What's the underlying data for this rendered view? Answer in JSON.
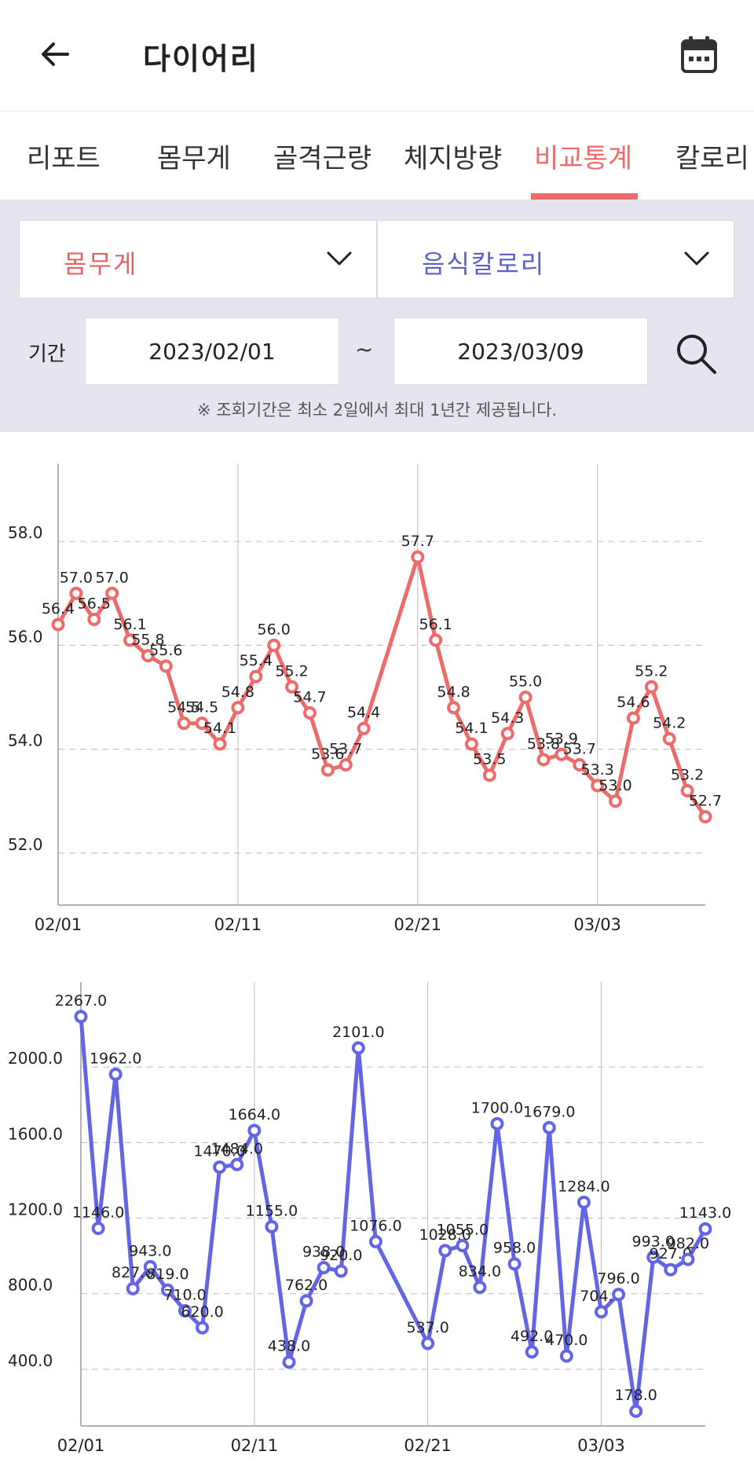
{
  "header": {
    "title": "다이어리",
    "back_icon": "arrow-left-icon",
    "calendar_icon": "calendar-icon"
  },
  "tabs": [
    {
      "label": "리포트",
      "active": false
    },
    {
      "label": "몸무게",
      "active": false
    },
    {
      "label": "골격근량",
      "active": false
    },
    {
      "label": "체지방량",
      "active": false
    },
    {
      "label": "비교통계",
      "active": true
    },
    {
      "label": "칼로리",
      "active": false
    }
  ],
  "filters": {
    "left_select": {
      "value": "몸무게",
      "color": "#e06464"
    },
    "right_select": {
      "value": "음식칼로리",
      "color": "#5a5fc8"
    },
    "period_label": "기간",
    "start_date": "2023/02/01",
    "separator": "~",
    "end_date": "2023/03/09",
    "search_icon": "search-icon",
    "notice": "※ 조회기간은 최소 2일에서 최대 1년간 제공됩니다."
  },
  "colors": {
    "accent": "#ee6b6b",
    "weight_line": "#ee6b6b",
    "calorie_line": "#6464e6"
  },
  "chart_data": [
    {
      "type": "line",
      "name": "weight",
      "x_ticks": [
        "02/01",
        "02/11",
        "02/21",
        "03/03"
      ],
      "ylim": [
        51.0,
        59.5
      ],
      "y_ticks": [
        "52.0",
        "54.0",
        "56.0",
        "58.0"
      ],
      "grid": true,
      "points": [
        {
          "x": 0,
          "y": 56.4,
          "label": "56.4"
        },
        {
          "x": 1,
          "y": 57.0,
          "label": "57.0"
        },
        {
          "x": 2,
          "y": 56.5,
          "label": "56.5"
        },
        {
          "x": 3,
          "y": 57.0,
          "label": "57.0"
        },
        {
          "x": 4,
          "y": 56.1,
          "label": "56.1"
        },
        {
          "x": 5,
          "y": 55.8,
          "label": "55.8"
        },
        {
          "x": 6,
          "y": 55.6,
          "label": "55.6"
        },
        {
          "x": 7,
          "y": 54.5,
          "label": "54.5"
        },
        {
          "x": 8,
          "y": 54.5,
          "label": "54.5"
        },
        {
          "x": 9,
          "y": 54.1,
          "label": "54.1"
        },
        {
          "x": 10,
          "y": 54.8,
          "label": "54.8"
        },
        {
          "x": 11,
          "y": 55.4,
          "label": "55.4"
        },
        {
          "x": 12,
          "y": 56.0,
          "label": "56.0"
        },
        {
          "x": 13,
          "y": 55.2,
          "label": "55.2"
        },
        {
          "x": 14,
          "y": 54.7,
          "label": "54.7"
        },
        {
          "x": 15,
          "y": 53.6,
          "label": "53.6"
        },
        {
          "x": 16,
          "y": 53.7,
          "label": "53.7"
        },
        {
          "x": 17,
          "y": 54.4,
          "label": "54.4"
        },
        {
          "x": 20,
          "y": 57.7,
          "label": "57.7"
        },
        {
          "x": 21,
          "y": 56.1,
          "label": "56.1"
        },
        {
          "x": 22,
          "y": 54.8,
          "label": "54.8"
        },
        {
          "x": 23,
          "y": 54.1,
          "label": "54.1"
        },
        {
          "x": 24,
          "y": 53.5,
          "label": "53.5"
        },
        {
          "x": 25,
          "y": 54.3,
          "label": "54.3"
        },
        {
          "x": 26,
          "y": 55.0,
          "label": "55.0"
        },
        {
          "x": 27,
          "y": 53.8,
          "label": "53.8"
        },
        {
          "x": 28,
          "y": 53.9,
          "label": "53.9"
        },
        {
          "x": 29,
          "y": 53.7,
          "label": "53.7"
        },
        {
          "x": 30,
          "y": 53.3,
          "label": "53.3"
        },
        {
          "x": 31,
          "y": 53.0,
          "label": "53.0"
        },
        {
          "x": 32,
          "y": 54.6,
          "label": "54.6"
        },
        {
          "x": 33,
          "y": 55.2,
          "label": "55.2"
        },
        {
          "x": 34,
          "y": 54.2,
          "label": "54.2"
        },
        {
          "x": 35,
          "y": 53.2,
          "label": "53.2"
        },
        {
          "x": 36,
          "y": 52.7,
          "label": "52.7"
        }
      ]
    },
    {
      "type": "line",
      "name": "calories",
      "x_ticks": [
        "02/01",
        "02/11",
        "02/21",
        "03/03"
      ],
      "ylim": [
        100,
        2450
      ],
      "y_ticks": [
        "400.0",
        "800.0",
        "1200.0",
        "1600.0",
        "2000.0"
      ],
      "grid": true,
      "points": [
        {
          "x": 0,
          "y": 2267,
          "label": "2267.0"
        },
        {
          "x": 1,
          "y": 1146,
          "label": "1146.0"
        },
        {
          "x": 2,
          "y": 1962,
          "label": "1962.0"
        },
        {
          "x": 3,
          "y": 827,
          "label": "827.0"
        },
        {
          "x": 4,
          "y": 943,
          "label": "943.0"
        },
        {
          "x": 5,
          "y": 819,
          "label": "819.0"
        },
        {
          "x": 6,
          "y": 710,
          "label": "710.0"
        },
        {
          "x": 7,
          "y": 620,
          "label": "620.0"
        },
        {
          "x": 8,
          "y": 1470,
          "label": "1470.0"
        },
        {
          "x": 9,
          "y": 1484,
          "label": "1484.0"
        },
        {
          "x": 10,
          "y": 1664,
          "label": "1664.0"
        },
        {
          "x": 11,
          "y": 1155,
          "label": "1155.0"
        },
        {
          "x": 12,
          "y": 438,
          "label": "438.0"
        },
        {
          "x": 13,
          "y": 762,
          "label": "762.0"
        },
        {
          "x": 14,
          "y": 938,
          "label": "938.0"
        },
        {
          "x": 15,
          "y": 920,
          "label": "920.0"
        },
        {
          "x": 16,
          "y": 2101,
          "label": "2101.0"
        },
        {
          "x": 17,
          "y": 1076,
          "label": "1076.0"
        },
        {
          "x": 20,
          "y": 537,
          "label": "537.0"
        },
        {
          "x": 21,
          "y": 1028,
          "label": "1028.0"
        },
        {
          "x": 22,
          "y": 1055,
          "label": "1055.0"
        },
        {
          "x": 23,
          "y": 834,
          "label": "834.0"
        },
        {
          "x": 24,
          "y": 1700,
          "label": "1700.0"
        },
        {
          "x": 25,
          "y": 958,
          "label": "958.0"
        },
        {
          "x": 26,
          "y": 492,
          "label": "492.0"
        },
        {
          "x": 27,
          "y": 1679,
          "label": "1679.0"
        },
        {
          "x": 28,
          "y": 470,
          "label": "470.0"
        },
        {
          "x": 29,
          "y": 1284,
          "label": "1284.0"
        },
        {
          "x": 30,
          "y": 704,
          "label": "704.0"
        },
        {
          "x": 31,
          "y": 796,
          "label": "796.0"
        },
        {
          "x": 32,
          "y": 178,
          "label": "178.0"
        },
        {
          "x": 33,
          "y": 993,
          "label": "993.0"
        },
        {
          "x": 34,
          "y": 927,
          "label": "927.0"
        },
        {
          "x": 35,
          "y": 982,
          "label": "982.0"
        },
        {
          "x": 36,
          "y": 1143,
          "label": "1143.0"
        }
      ]
    }
  ]
}
